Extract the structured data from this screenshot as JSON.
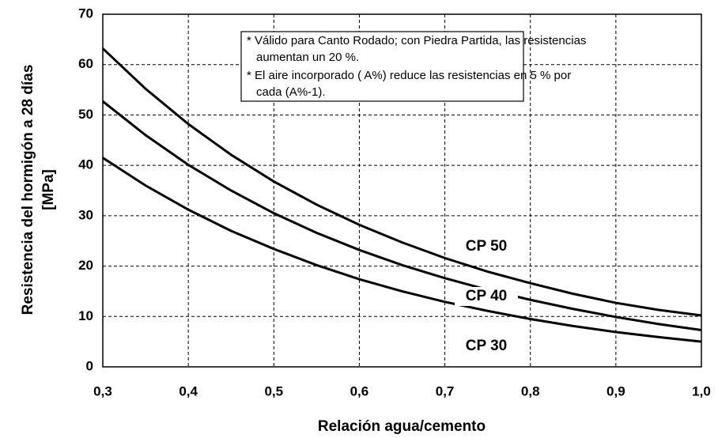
{
  "chart_data": {
    "type": "line",
    "x_label": "Relación agua/cemento",
    "y_label": [
      "Resistencia del hormigón a 28 días",
      "[MPa]"
    ],
    "annotations": [
      [
        "* Válido para Canto Rodado;  con Piedra Partida, las resistencias",
        "aumentan un 20 %."
      ],
      [
        "* El aire incorporado ( A%) reduce las resistencias en 5 % por",
        "cada (A%-1)."
      ]
    ],
    "x": [
      0.3,
      0.35,
      0.4,
      0.45,
      0.5,
      0.55,
      0.6,
      0.65,
      0.7,
      0.75,
      0.8,
      0.85,
      0.9,
      0.95,
      1.0
    ],
    "series": [
      {
        "name": "CP 50",
        "color": "#000000",
        "values": [
          63.2,
          55.2,
          48.2,
          42.1,
          36.8,
          32.2,
          28.2,
          24.7,
          21.6,
          18.9,
          16.6,
          14.5,
          12.7,
          11.3,
          10.2
        ]
      },
      {
        "name": "CP 40",
        "color": "#000000",
        "values": [
          52.7,
          46,
          40.1,
          35,
          30.5,
          26.6,
          23.2,
          20.2,
          17.6,
          15.3,
          13.3,
          11.5,
          9.9,
          8.5,
          7.3
        ]
      },
      {
        "name": "CP 30",
        "color": "#000000",
        "values": [
          41.5,
          36,
          31.2,
          27,
          23.4,
          20.2,
          17.4,
          15,
          12.9,
          11.1,
          9.5,
          8.1,
          6.9,
          5.9,
          5.0
        ]
      }
    ],
    "xlim": [
      0.3,
      1.0
    ],
    "ylim": [
      0,
      70
    ],
    "xticks": [
      {
        "value": 0.3,
        "label": "0,3"
      },
      {
        "value": 0.4,
        "label": "0,4"
      },
      {
        "value": 0.5,
        "label": "0,5"
      },
      {
        "value": 0.6,
        "label": "0,6"
      },
      {
        "value": 0.7,
        "label": "0,7"
      },
      {
        "value": 0.8,
        "label": "0,8"
      },
      {
        "value": 0.9,
        "label": "0,9"
      },
      {
        "value": 1.0,
        "label": "1,0"
      }
    ],
    "yticks": [
      0,
      10,
      20,
      30,
      40,
      50,
      60,
      70
    ],
    "grid": true
  }
}
